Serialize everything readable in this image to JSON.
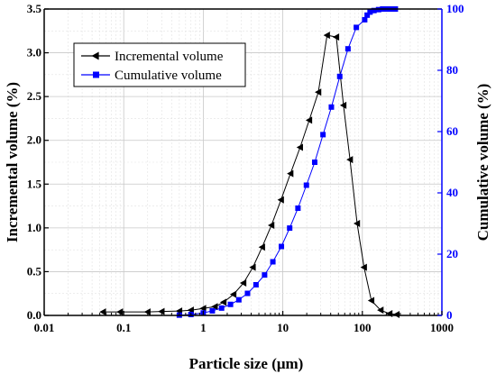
{
  "chart_data": {
    "type": "line",
    "title": "",
    "xlabel": "Particle size (μm)",
    "ylabel_left": "Incremental volume (%)",
    "ylabel_right": "Cumulative volume (%)",
    "x_scale": "log",
    "xlim": [
      0.01,
      1000
    ],
    "ylim_left": [
      0,
      3.5
    ],
    "ylim_right": [
      0,
      100
    ],
    "x_ticks": [
      "0.01",
      "0.1",
      "1",
      "10",
      "100",
      "1000"
    ],
    "y_left_ticks": [
      "0.0",
      "0.5",
      "1.0",
      "1.5",
      "2.0",
      "2.5",
      "3.0",
      "3.5"
    ],
    "y_right_ticks": [
      "0",
      "20",
      "40",
      "60",
      "80",
      "100"
    ],
    "grid": true,
    "legend_position": "top-left",
    "series": [
      {
        "name": "Incremental volume",
        "axis": "left",
        "color": "#000000",
        "marker": "triangle-left",
        "x": [
          0.055,
          0.09,
          0.2,
          0.3,
          0.5,
          0.7,
          1.0,
          1.4,
          1.8,
          2.4,
          3.2,
          4.2,
          5.5,
          7.2,
          9.5,
          12.5,
          16.5,
          21.5,
          28,
          36,
          47,
          58,
          70,
          86,
          105,
          130,
          170,
          220,
          270
        ],
        "y": [
          0.04,
          0.04,
          0.04,
          0.045,
          0.05,
          0.06,
          0.08,
          0.1,
          0.15,
          0.24,
          0.37,
          0.55,
          0.78,
          1.03,
          1.32,
          1.62,
          1.92,
          2.23,
          2.55,
          3.2,
          3.18,
          2.4,
          1.78,
          1.05,
          0.55,
          0.17,
          0.06,
          0.02,
          0.01
        ]
      },
      {
        "name": "Cumulative volume",
        "axis": "right",
        "color": "#0000ff",
        "marker": "square",
        "x": [
          0.5,
          0.7,
          1.0,
          1.3,
          1.7,
          2.2,
          2.8,
          3.6,
          4.6,
          5.9,
          7.5,
          9.6,
          12.2,
          15.5,
          19.8,
          25.2,
          32,
          40.8,
          52,
          66,
          84,
          107,
          115,
          125,
          140,
          160,
          180,
          200,
          220,
          240,
          260
        ],
        "y": [
          0.1,
          0.3,
          0.8,
          1.5,
          2.4,
          3.6,
          5.1,
          7.2,
          10,
          13.2,
          17.5,
          22.5,
          28.5,
          35,
          42.5,
          50,
          59,
          68,
          78,
          87,
          94,
          96.5,
          98,
          99,
          99.5,
          99.8,
          100,
          100,
          100,
          100,
          100
        ]
      }
    ]
  }
}
